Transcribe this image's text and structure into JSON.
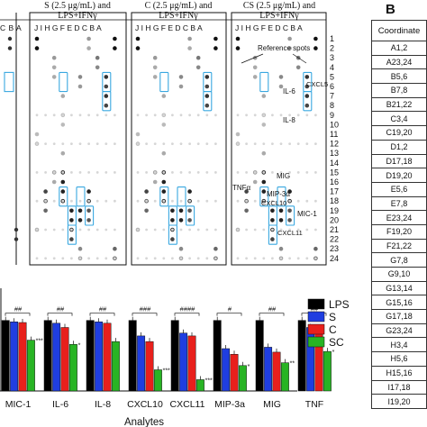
{
  "panel_labels": {
    "b": "B"
  },
  "blot_panels": [
    {
      "header_line1": "S (2.5 μg/mL) and",
      "header_line2": "LPS+IFNγ",
      "columns": "J I H G F E D C B A"
    },
    {
      "header_line1": "C (2.5 μg/mL) and",
      "header_line2": "LPS+IFNγ",
      "columns": "J I H G F E D C B A"
    },
    {
      "header_line1": "CS (2.5 μg/mL) and",
      "header_line2": "LPS+IFNγ",
      "columns": "J I H G F E D C B A"
    }
  ],
  "blot_left_columns": "C B A",
  "row_numbers": [
    "1",
    "2",
    "3",
    "4",
    "5",
    "6",
    "7",
    "8",
    "9",
    "10",
    "11",
    "12",
    "13",
    "14",
    "15",
    "16",
    "17",
    "18",
    "19",
    "20",
    "21",
    "22",
    "23",
    "24"
  ],
  "blot_annotations": {
    "reference_spots": "Reference spots",
    "il6": "IL-6",
    "il8": "IL-8",
    "cxcl5": "CXCL5",
    "tnfa": "TNFα",
    "mig": "MIG",
    "mip3a": "MIP-3α",
    "cxcl10": "CXCL10",
    "mic1": "MIC-1",
    "cxcl11": "CXCL11"
  },
  "coordinate_table": {
    "header": "Coordinate",
    "rows": [
      "A1,2",
      "A23,24",
      "B5,6",
      "B7,8",
      "B21,22",
      "C3,4",
      "C19,20",
      "D1,2",
      "D17,18",
      "D19,20",
      "E5,6",
      "E7,8",
      "E23,24",
      "F19,20",
      "F21,22",
      "G7,8",
      "G9,10",
      "G13,14",
      "G15,16",
      "G17,18",
      "G23,24",
      "H3,4",
      "H5,6",
      "H15,16",
      "I17,18",
      "I19,20"
    ]
  },
  "chart_data": {
    "type": "bar",
    "xlabel": "Analytes",
    "categories": [
      "MIC-1",
      "IL-6",
      "IL-8",
      "CXCL10",
      "CXCL11",
      "MIP-3a",
      "MIG",
      "TNF"
    ],
    "series": [
      {
        "name": "LPS",
        "color": "#000000",
        "values": [
          100,
          100,
          100,
          100,
          100,
          100,
          100,
          100
        ]
      },
      {
        "name": "S",
        "color": "#1f3ee0",
        "values": [
          98,
          96,
          98,
          78,
          82,
          60,
          62,
          90
        ]
      },
      {
        "name": "C",
        "color": "#e8201c",
        "values": [
          97,
          90,
          96,
          70,
          78,
          52,
          55,
          84
        ]
      },
      {
        "name": "SC",
        "color": "#28b424",
        "values": [
          72,
          66,
          70,
          30,
          16,
          36,
          40,
          56
        ]
      }
    ],
    "ylim": [
      0,
      120
    ],
    "significance": [
      {
        "top": "##",
        "star": "***"
      },
      {
        "top": "##",
        "star": "*"
      },
      {
        "top": "##",
        "star": ""
      },
      {
        "top": "###",
        "star": "***"
      },
      {
        "top": "####",
        "star": "***"
      },
      {
        "top": "#",
        "star": "*"
      },
      {
        "top": "##",
        "star": "**"
      },
      {
        "top": "##",
        "star": "*"
      }
    ]
  }
}
